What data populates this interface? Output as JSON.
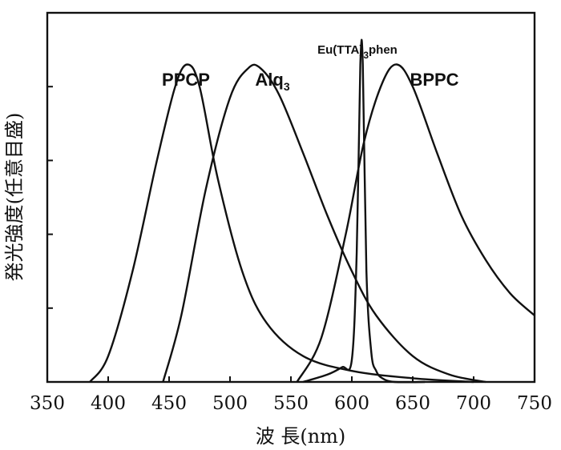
{
  "chart_data": {
    "type": "line",
    "xlabel": "波 長(nm)",
    "ylabel": "発光強度(任意目盛)",
    "xlim": [
      350,
      750
    ],
    "ylim": [
      0,
      1
    ],
    "x_ticks": [
      "350",
      "400",
      "450",
      "500",
      "550",
      "600",
      "650",
      "700",
      "750"
    ],
    "y_tick_count": 5,
    "grid": false,
    "series": [
      {
        "name": "PPCP",
        "label_parts": [
          "PPCP"
        ],
        "x": [
          385,
          400,
          420,
          440,
          455,
          465,
          475,
          490,
          510,
          530,
          560,
          600,
          650,
          700
        ],
        "y": [
          0.0,
          0.07,
          0.3,
          0.6,
          0.8,
          0.86,
          0.8,
          0.55,
          0.3,
          0.16,
          0.07,
          0.03,
          0.01,
          0.0
        ]
      },
      {
        "name": "Alq3",
        "label_parts": [
          "Alq",
          "3"
        ],
        "x": [
          445,
          460,
          480,
          500,
          515,
          525,
          540,
          560,
          580,
          600,
          620,
          650,
          680,
          710
        ],
        "y": [
          0.0,
          0.18,
          0.52,
          0.77,
          0.85,
          0.85,
          0.78,
          0.62,
          0.45,
          0.3,
          0.18,
          0.07,
          0.02,
          0.0
        ]
      },
      {
        "name": "Eu(TTA)3phen",
        "label_parts": [
          "Eu(TTA)",
          "3",
          "phen"
        ],
        "x": [
          560,
          580,
          592,
          600,
          604,
          607,
          609,
          612,
          616,
          620,
          625,
          635,
          660
        ],
        "y": [
          0.0,
          0.02,
          0.04,
          0.06,
          0.35,
          0.86,
          0.86,
          0.3,
          0.08,
          0.03,
          0.01,
          0.0,
          0.0
        ]
      },
      {
        "name": "BPPC",
        "label_parts": [
          "BPPC"
        ],
        "x": [
          555,
          575,
          595,
          610,
          625,
          637,
          650,
          670,
          690,
          710,
          730,
          750
        ],
        "y": [
          0.0,
          0.12,
          0.4,
          0.65,
          0.81,
          0.86,
          0.8,
          0.62,
          0.45,
          0.33,
          0.24,
          0.18
        ]
      }
    ]
  }
}
